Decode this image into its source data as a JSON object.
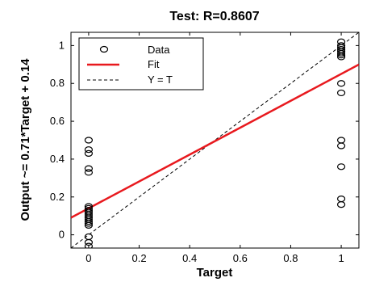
{
  "chart_data": {
    "type": "scatter",
    "title": "Test: R=0.8607",
    "xlabel": "Target",
    "ylabel": "Output ~= 0.71*Target + 0.14",
    "xlim": [
      -0.07,
      1.07
    ],
    "ylim": [
      -0.07,
      1.07
    ],
    "xticks": [
      0,
      0.2,
      0.4,
      0.6,
      0.8,
      1
    ],
    "yticks": [
      0,
      0.2,
      0.4,
      0.6,
      0.8,
      1
    ],
    "xtick_labels": [
      "0",
      "0.2",
      "0.4",
      "0.6",
      "0.8",
      "1"
    ],
    "ytick_labels": [
      "0",
      "0.2",
      "0.4",
      "0.6",
      "0.8",
      "1"
    ],
    "grid": false,
    "legend": {
      "placement": "top-left",
      "entries": [
        "Data",
        "Fit",
        "Y = T"
      ]
    },
    "series": [
      {
        "name": "Data",
        "kind": "markers",
        "color": "#000000",
        "points": [
          [
            0,
            0.5
          ],
          [
            0,
            0.45
          ],
          [
            0,
            0.43
          ],
          [
            0,
            0.35
          ],
          [
            0,
            0.33
          ],
          [
            0,
            0.15
          ],
          [
            0,
            0.14
          ],
          [
            0,
            0.13
          ],
          [
            0,
            0.12
          ],
          [
            0,
            0.11
          ],
          [
            0,
            0.1
          ],
          [
            0,
            0.09
          ],
          [
            0,
            0.08
          ],
          [
            0,
            0.07
          ],
          [
            0,
            0.06
          ],
          [
            0,
            0.05
          ],
          [
            0,
            -0.01
          ],
          [
            0,
            -0.04
          ],
          [
            0,
            -0.06
          ],
          [
            1,
            1.02
          ],
          [
            1,
            1.0
          ],
          [
            1,
            0.99
          ],
          [
            1,
            0.98
          ],
          [
            1,
            0.97
          ],
          [
            1,
            0.96
          ],
          [
            1,
            0.95
          ],
          [
            1,
            0.94
          ],
          [
            1,
            0.8
          ],
          [
            1,
            0.75
          ],
          [
            1,
            0.5
          ],
          [
            1,
            0.47
          ],
          [
            1,
            0.36
          ],
          [
            1,
            0.19
          ],
          [
            1,
            0.16
          ]
        ]
      },
      {
        "name": "Fit",
        "kind": "line",
        "color": "#e8191e",
        "slope": 0.71,
        "intercept": 0.14
      },
      {
        "name": "Y = T",
        "kind": "dashed-line",
        "color": "#000000",
        "slope": 1,
        "intercept": 0
      }
    ]
  }
}
